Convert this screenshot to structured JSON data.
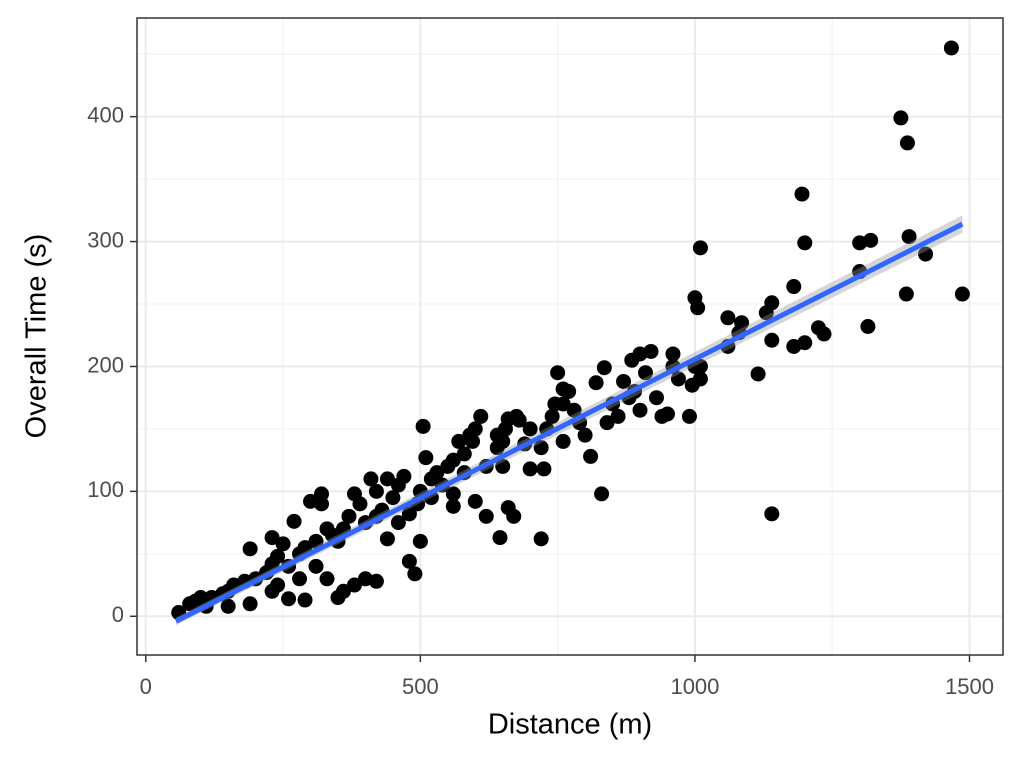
{
  "chart_data": {
    "type": "scatter",
    "xlabel": "Distance (m)",
    "ylabel": "Overall Time (s)",
    "x": [
      1467,
      1375,
      1387,
      1195,
      1390,
      1200,
      1300,
      1320,
      1010,
      1300,
      1420,
      1487,
      1385,
      1180,
      1000,
      1005,
      1060,
      1085,
      1140,
      1130,
      1315,
      1225,
      1235,
      1200,
      1180,
      1140,
      1115,
      1140,
      1080,
      1060,
      1010,
      1010,
      995,
      990,
      950,
      960,
      920,
      900,
      885,
      870,
      930,
      940,
      900,
      890,
      860,
      840,
      835,
      820,
      830,
      810,
      800,
      780,
      770,
      760,
      750,
      745,
      740,
      720,
      730,
      725,
      720,
      700,
      690,
      680,
      675,
      660,
      655,
      640,
      650,
      670,
      660,
      645,
      620,
      610,
      600,
      590,
      595,
      580,
      570,
      560,
      550,
      560,
      600,
      520,
      510,
      505,
      500,
      495,
      500,
      490,
      480,
      470,
      460,
      450,
      440,
      430,
      420,
      410,
      400,
      390,
      380,
      370,
      360,
      350,
      340,
      330,
      320,
      320,
      300,
      310,
      290,
      280,
      270,
      260,
      250,
      240,
      230,
      220,
      190,
      200,
      180,
      160,
      150,
      140,
      120,
      100,
      90,
      80,
      60,
      110,
      150,
      190,
      260,
      290,
      330,
      350,
      360,
      380,
      400,
      420,
      310,
      280,
      240,
      230,
      440,
      460,
      480,
      520,
      540,
      580,
      620,
      640,
      700,
      760,
      790,
      850,
      880,
      910,
      960,
      970,
      1000,
      760,
      230,
      560,
      650,
      530,
      420
    ],
    "values": [
      455,
      399,
      379,
      338,
      304,
      299,
      299,
      301,
      295,
      276,
      290,
      258,
      258,
      264,
      255,
      247,
      239,
      235,
      251,
      243,
      232,
      231,
      226,
      219,
      216,
      221,
      194,
      82,
      227,
      216,
      200,
      190,
      185,
      160,
      162,
      210,
      212,
      210,
      205,
      188,
      175,
      160,
      165,
      180,
      160,
      155,
      199,
      187,
      98,
      128,
      145,
      165,
      180,
      182,
      195,
      170,
      160,
      135,
      150,
      118,
      62,
      150,
      138,
      157,
      160,
      158,
      150,
      145,
      120,
      80,
      87,
      63,
      80,
      160,
      150,
      145,
      140,
      130,
      140,
      125,
      120,
      88,
      92,
      110,
      127,
      152,
      100,
      90,
      60,
      34,
      44,
      112,
      105,
      95,
      110,
      85,
      100,
      110,
      75,
      90,
      98,
      80,
      70,
      60,
      65,
      70,
      98,
      90,
      92,
      60,
      55,
      50,
      76,
      40,
      58,
      48,
      42,
      35,
      54,
      30,
      28,
      25,
      20,
      18,
      15,
      15,
      12,
      10,
      3,
      8,
      8,
      10,
      14,
      13,
      30,
      15,
      20,
      25,
      30,
      28,
      40,
      30,
      25,
      20,
      62,
      75,
      82,
      95,
      105,
      115,
      120,
      135,
      118,
      140,
      155,
      170,
      175,
      195,
      200,
      190,
      200,
      170,
      63,
      98,
      140,
      115,
      80
    ],
    "color": "#000000",
    "trend": {
      "x": [
        55,
        1487
      ],
      "y": [
        -4,
        314
      ],
      "lower": [
        -7,
        307
      ],
      "upper": [
        -1,
        321
      ],
      "color": "#3366ff"
    },
    "xlim": [
      -16,
      1561
    ],
    "ylim": [
      -31,
      479
    ],
    "xticks": [
      0,
      500,
      1000,
      1500
    ],
    "yticks": [
      0,
      100,
      200,
      300,
      400
    ],
    "minor_xticks": [
      250,
      750,
      1250
    ],
    "minor_yticks": [
      50,
      150,
      250,
      350,
      450
    ],
    "grid": true
  }
}
